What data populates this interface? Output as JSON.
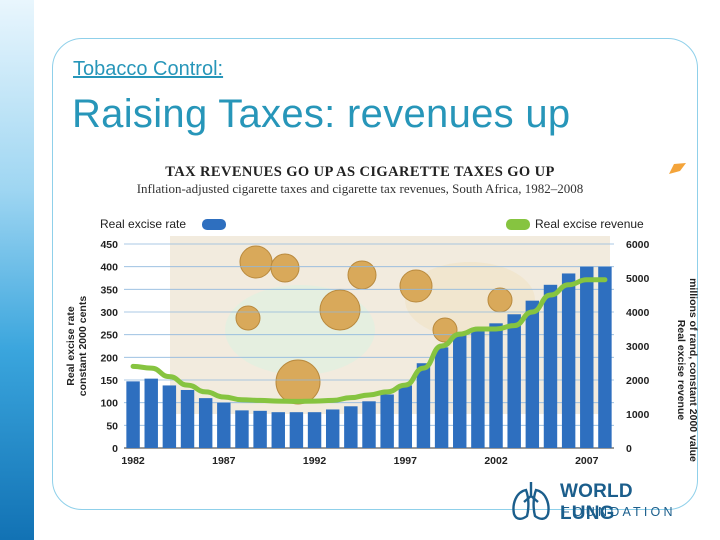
{
  "slide": {
    "kicker": "Tobacco Control:",
    "title": "Raising Taxes: revenues up"
  },
  "logo": {
    "line1": "WORLD LUNG",
    "line2": "FOUNDATION",
    "icon": "lungs-logo-icon"
  },
  "colors": {
    "title": "#2796b9",
    "bar": "#2e6fbf",
    "line": "#86c440",
    "frame": "#8fd0ea"
  },
  "chart_data": {
    "type": "bar",
    "title": "TAX REVENUES GO UP AS CIGARETTE TAXES GO UP",
    "subtitle": "Inflation-adjusted cigarette taxes and cigarette tax revenues, South Africa, 1982–2008",
    "x": [
      1982,
      1983,
      1984,
      1985,
      1986,
      1987,
      1988,
      1989,
      1990,
      1991,
      1992,
      1993,
      1994,
      1995,
      1996,
      1997,
      1998,
      1999,
      2000,
      2001,
      2002,
      2003,
      2004,
      2005,
      2006,
      2007,
      2008
    ],
    "x_tick_labels": [
      "1982",
      "1987",
      "1992",
      "1997",
      "2002",
      "2007"
    ],
    "series": [
      {
        "name": "Real excise rate",
        "kind": "bar",
        "axis": "left",
        "values": [
          147,
          153,
          138,
          128,
          110,
          100,
          83,
          82,
          79,
          79,
          79,
          85,
          92,
          103,
          118,
          138,
          187,
          222,
          250,
          265,
          275,
          295,
          325,
          360,
          385,
          400,
          400
        ]
      },
      {
        "name": "Real excise revenue",
        "kind": "line",
        "axis": "right",
        "values": [
          2400,
          2350,
          2100,
          1850,
          1650,
          1500,
          1420,
          1400,
          1380,
          1370,
          1380,
          1400,
          1480,
          1560,
          1650,
          1850,
          2350,
          3000,
          3350,
          3500,
          3500,
          3600,
          4000,
          4500,
          4800,
          4950,
          4950
        ]
      }
    ],
    "y_left": {
      "label_lines": [
        "Real excise rate",
        "constant 2000 cents"
      ],
      "ticks": [
        "0",
        "50",
        "100",
        "150",
        "200",
        "250",
        "300",
        "350",
        "400",
        "450"
      ],
      "range": [
        0,
        450
      ]
    },
    "y_right": {
      "label_lines": [
        "Real excise revenue",
        "millions of rand, constant 2000 value"
      ],
      "ticks": [
        "0",
        "1000",
        "2000",
        "3000",
        "4000",
        "5000",
        "6000"
      ],
      "range": [
        0,
        6000
      ]
    },
    "legend": [
      {
        "label": "Real excise rate",
        "placement": "top-left"
      },
      {
        "label": "Real excise revenue",
        "placement": "top-right"
      }
    ]
  }
}
